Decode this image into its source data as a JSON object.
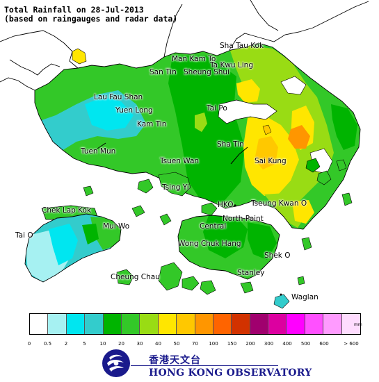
{
  "title": {
    "line1": "Total Rainfall on 28-Jul-2013",
    "line2": "(based on raingauges and radar data)"
  },
  "places": {
    "sha_tau_kok": "Sha Tau Kok",
    "man_kam_to": "Man Kam To",
    "ta_kwu_ling": "Ta Kwu Ling",
    "san_tin": "San Tin",
    "sheung_shui": "Sheung Shui",
    "lau_fau_shan": "Lau Fau Shan",
    "yuen_long": "Yuen Long",
    "kam_tin": "Kam Tin",
    "tai_po": "Tai Po",
    "sha_tin": "Sha Tin",
    "tuen_mun": "Tuen Mun",
    "tsuen_wan": "Tsuen Wan",
    "sai_kung": "Sai Kung",
    "tsing_yi": "Tsing Yi",
    "chek_lap_kok": "Chek Lap Kok",
    "hko": "HKO",
    "tseung_kwan_o": "Tseung Kwan O",
    "mui_wo": "Mui Wo",
    "north_point": "North Point",
    "central": "Central",
    "tai_o": "Tai O",
    "wong_chuk_hang": "Wong Chuk Hang",
    "shek_o": "Shek O",
    "cheung_chau": "Cheung Chau",
    "stanley": "Stanley",
    "waglan": "Waglan"
  },
  "legend": {
    "unit": "mm",
    "colors": [
      "#ffffff",
      "#a6f1f2",
      "#00e6f0",
      "#33cccc",
      "#00b400",
      "#33c828",
      "#99dc14",
      "#ffe600",
      "#ffc800",
      "#ff9600",
      "#ff6400",
      "#d23200",
      "#a0006e",
      "#dc00a0",
      "#ff00ff",
      "#ff50ff",
      "#ff9bff",
      "#ffdcff"
    ],
    "ticks": [
      "0",
      "0.5",
      "2",
      "5",
      "10",
      "20",
      "30",
      "40",
      "50",
      "70",
      "100",
      "150",
      "200",
      "300",
      "400",
      "500",
      "600",
      "> 600"
    ]
  },
  "organization": {
    "name_cn": "香港天文台",
    "name_en": "HONG KONG OBSERVATORY"
  },
  "colors": {
    "land_green": "#33c828",
    "dark_green": "#00b400",
    "light_green": "#99dc14",
    "yellow": "#ffe600",
    "gold": "#ffc800",
    "orange": "#ff9600",
    "cyan": "#00e6f0",
    "teal": "#33cccc",
    "pale_cyan": "#a6f1f2",
    "brand_blue": "#1a1a8c"
  }
}
